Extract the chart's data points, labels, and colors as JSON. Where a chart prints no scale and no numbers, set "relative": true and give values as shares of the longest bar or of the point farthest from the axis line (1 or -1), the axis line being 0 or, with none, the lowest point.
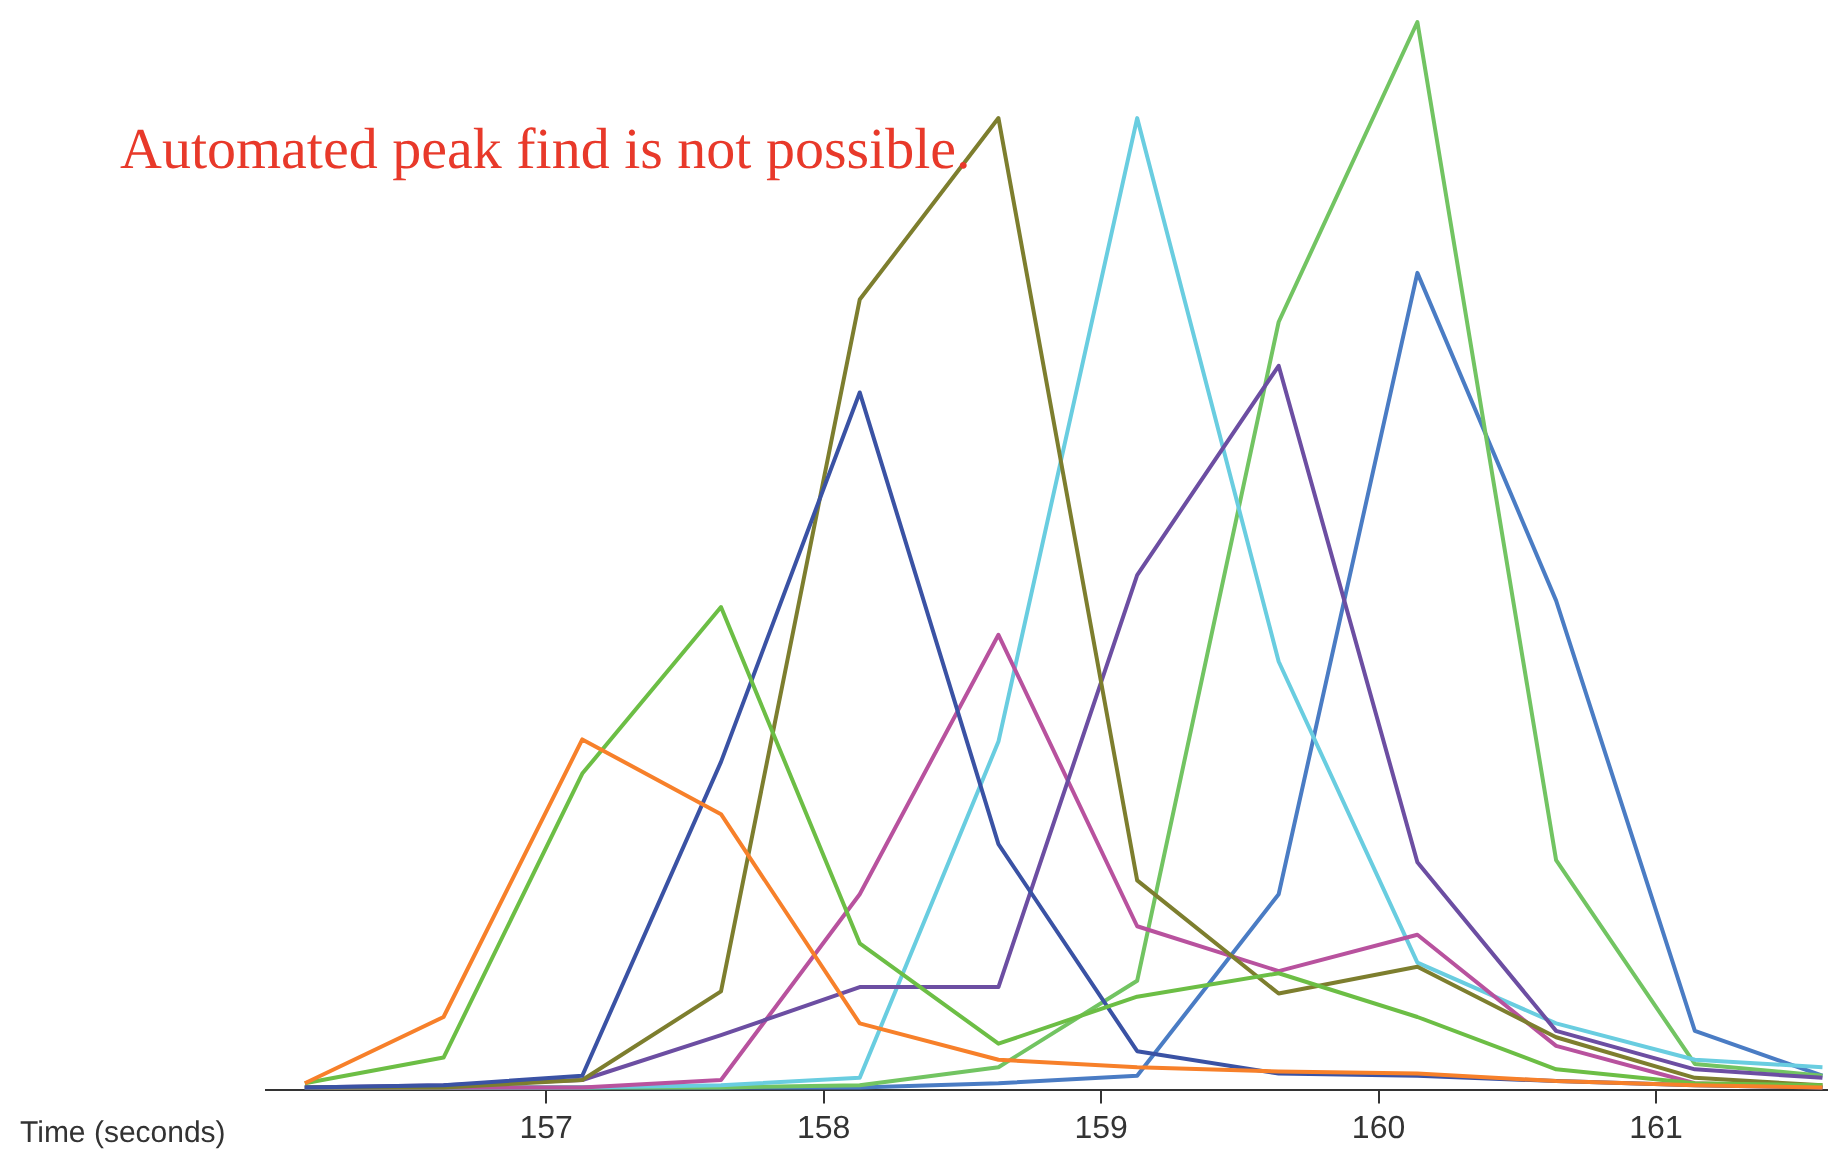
{
  "chart_data": {
    "type": "line",
    "relative": true,
    "xlabel": "Time (seconds)",
    "annotations": [
      "Automated peak find is not possible."
    ],
    "x": [
      156.13,
      156.63,
      157.13,
      157.63,
      158.13,
      158.63,
      159.13,
      159.64,
      160.14,
      160.64,
      161.14,
      161.6
    ],
    "xlim": [
      155.99,
      161.62
    ],
    "xticks": [
      157,
      158,
      159,
      160,
      161
    ],
    "tick_labels": "x",
    "grid": false,
    "legend": false,
    "marker": "none",
    "line_style": "solid",
    "series": [
      {
        "color": "#f7802a",
        "values": [
          0.006,
          0.068,
          0.328,
          0.258,
          0.062,
          0.028,
          0.021,
          0.017,
          0.015,
          0.008,
          0.004,
          0.002
        ]
      },
      {
        "color": "#6cbe45",
        "values": [
          0.006,
          0.03,
          0.296,
          0.452,
          0.137,
          0.043,
          0.087,
          0.109,
          0.068,
          0.019,
          0.006,
          0.004
        ]
      },
      {
        "color": "#3a52a4",
        "values": [
          0.002,
          0.004,
          0.013,
          0.307,
          0.653,
          0.23,
          0.036,
          0.015,
          0.013,
          0.008,
          0.004,
          0.002
        ]
      },
      {
        "color": "#7d7e2e",
        "values": [
          0.002,
          0.002,
          0.009,
          0.092,
          0.74,
          0.91,
          0.196,
          0.09,
          0.115,
          0.049,
          0.011,
          0.004
        ]
      },
      {
        "color": "#6c4ea2",
        "values": [
          0.002,
          0.004,
          0.009,
          0.051,
          0.096,
          0.096,
          0.482,
          0.678,
          0.213,
          0.055,
          0.019,
          0.011
        ]
      },
      {
        "color": "#b8529e",
        "values": [
          0.002,
          0.002,
          0.002,
          0.009,
          0.183,
          0.426,
          0.153,
          0.111,
          0.145,
          0.041,
          0.006,
          0.002
        ]
      },
      {
        "color": "#69cde0",
        "values": [
          0.002,
          0.002,
          0.002,
          0.004,
          0.011,
          0.326,
          0.91,
          0.401,
          0.119,
          0.062,
          0.028,
          0.021
        ]
      },
      {
        "color": "#72c462",
        "values": [
          0.002,
          0.002,
          0.002,
          0.002,
          0.004,
          0.021,
          0.102,
          0.719,
          1,
          0.215,
          0.024,
          0.013
        ]
      },
      {
        "color": "#4a7cc4",
        "values": [
          0.002,
          0.002,
          0.002,
          0.002,
          0.002,
          0.006,
          0.013,
          0.183,
          0.765,
          0.458,
          0.055,
          0.013
        ]
      }
    ]
  }
}
